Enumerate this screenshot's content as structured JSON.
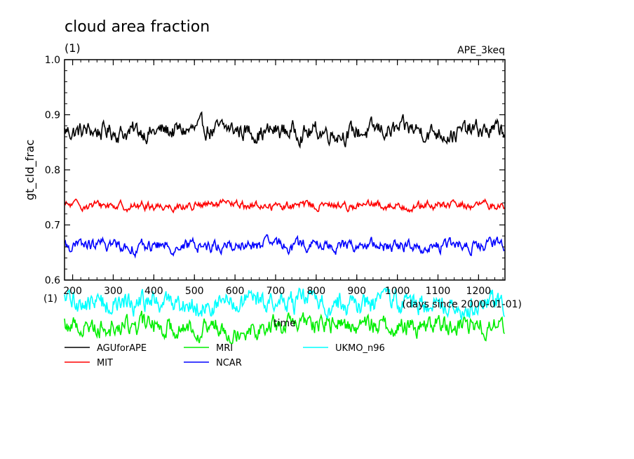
{
  "header": {
    "title": "cloud area fraction",
    "subtitle": "(1)",
    "experiment": "APE_3keq"
  },
  "chart_data": {
    "type": "line",
    "title": "cloud area fraction",
    "ylabel": "gt_cld_frac",
    "yunits": "(1)",
    "xlabel": "time",
    "xunits": "(days since 2000-01-01)",
    "xlim": [
      180,
      1265
    ],
    "ylim": [
      0.6,
      1.0
    ],
    "xticks": [
      200,
      300,
      400,
      500,
      600,
      700,
      800,
      900,
      1000,
      1100,
      1200
    ],
    "yticks": [
      "0.6",
      "0.7",
      "0.8",
      "0.9",
      "1.0"
    ],
    "grid": false,
    "legend_position": "bottom",
    "series": [
      {
        "name": "AGUforAPE",
        "color": "#000000",
        "mean": 0.87,
        "amp": 0.015
      },
      {
        "name": "MIT",
        "color": "#ff0000",
        "mean": 0.735,
        "amp": 0.007
      },
      {
        "name": "NCAR",
        "color": "#0000ff",
        "mean": 0.662,
        "amp": 0.01
      },
      {
        "name": "MRI",
        "color": "#00ee00",
        "mean": 0.518,
        "amp": 0.016
      },
      {
        "name": "UKMO_n96",
        "color": "#00ffff",
        "mean": 0.558,
        "amp": 0.018
      }
    ]
  }
}
